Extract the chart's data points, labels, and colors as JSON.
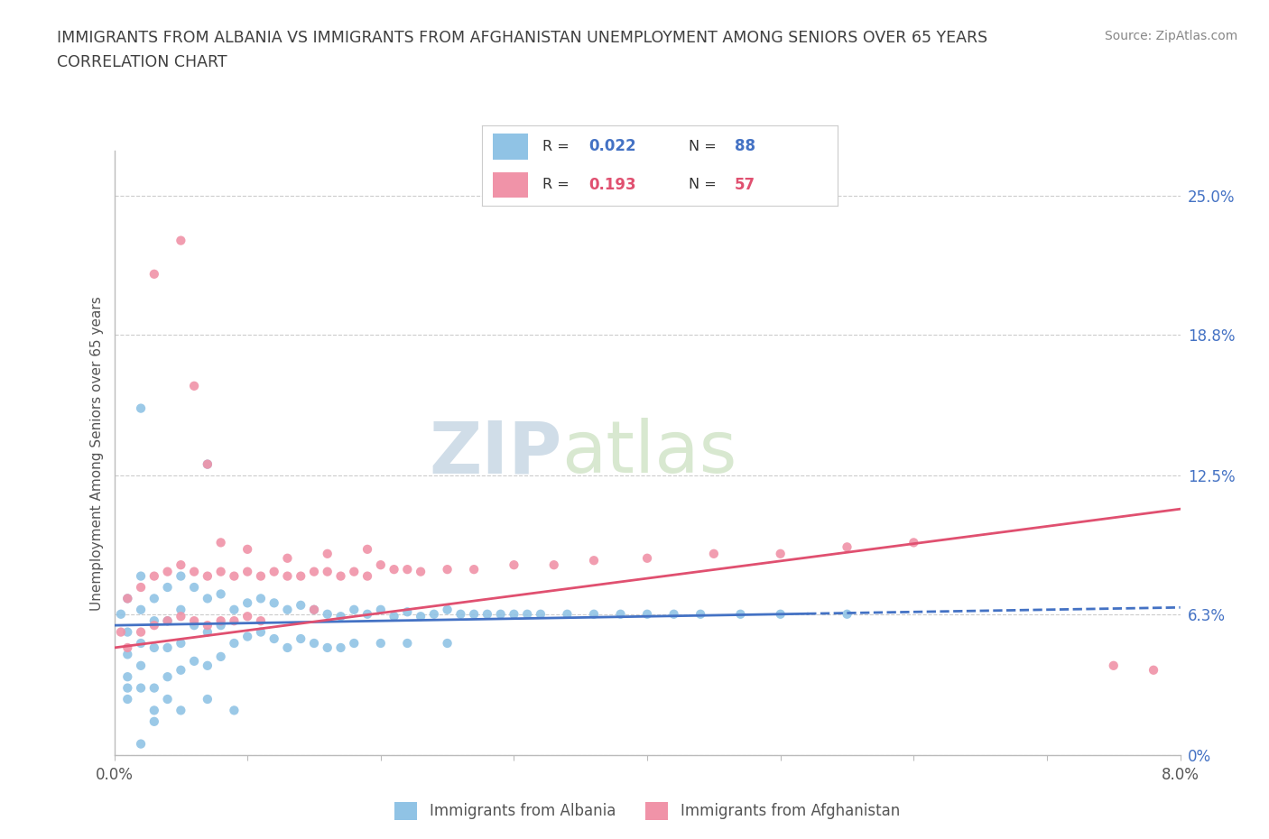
{
  "title_line1": "IMMIGRANTS FROM ALBANIA VS IMMIGRANTS FROM AFGHANISTAN UNEMPLOYMENT AMONG SENIORS OVER 65 YEARS",
  "title_line2": "CORRELATION CHART",
  "source_text": "Source: ZipAtlas.com",
  "ylabel": "Unemployment Among Seniors over 65 years",
  "xlim": [
    0.0,
    0.08
  ],
  "ylim": [
    0.0,
    0.27
  ],
  "yticks": [
    0.0,
    0.063,
    0.125,
    0.188,
    0.25
  ],
  "ytick_labels": [
    "0%",
    "6.3%",
    "12.5%",
    "18.8%",
    "25.0%"
  ],
  "albania_color": "#90C3E5",
  "afghanistan_color": "#F093A8",
  "albania_R": 0.022,
  "albania_N": 88,
  "afghanistan_R": 0.193,
  "afghanistan_N": 57,
  "legend_label_albania": "Immigrants from Albania",
  "legend_label_afghanistan": "Immigrants from Afghanistan",
  "watermark_zip": "ZIP",
  "watermark_atlas": "atlas",
  "background_color": "#ffffff",
  "grid_color": "#cccccc",
  "title_color": "#404040",
  "albania_trend_color": "#4472C4",
  "afghanistan_trend_color": "#E05070",
  "right_label_color": "#4472C4",
  "albania_x": [
    0.0005,
    0.001,
    0.001,
    0.001,
    0.001,
    0.001,
    0.002,
    0.002,
    0.002,
    0.002,
    0.002,
    0.003,
    0.003,
    0.003,
    0.003,
    0.004,
    0.004,
    0.004,
    0.004,
    0.005,
    0.005,
    0.005,
    0.005,
    0.006,
    0.006,
    0.006,
    0.007,
    0.007,
    0.007,
    0.008,
    0.008,
    0.008,
    0.009,
    0.009,
    0.01,
    0.01,
    0.011,
    0.011,
    0.012,
    0.012,
    0.013,
    0.013,
    0.014,
    0.014,
    0.015,
    0.015,
    0.016,
    0.016,
    0.017,
    0.017,
    0.018,
    0.018,
    0.019,
    0.02,
    0.02,
    0.021,
    0.022,
    0.022,
    0.023,
    0.024,
    0.025,
    0.025,
    0.026,
    0.027,
    0.028,
    0.029,
    0.03,
    0.031,
    0.032,
    0.034,
    0.036,
    0.038,
    0.04,
    0.042,
    0.044,
    0.047,
    0.05,
    0.055,
    0.002,
    0.001,
    0.003,
    0.004,
    0.005,
    0.007,
    0.009,
    0.003,
    0.002,
    0.007
  ],
  "albania_y": [
    0.063,
    0.07,
    0.055,
    0.045,
    0.035,
    0.025,
    0.08,
    0.065,
    0.05,
    0.04,
    0.03,
    0.07,
    0.06,
    0.048,
    0.03,
    0.075,
    0.06,
    0.048,
    0.035,
    0.08,
    0.065,
    0.05,
    0.038,
    0.075,
    0.058,
    0.042,
    0.07,
    0.055,
    0.04,
    0.072,
    0.058,
    0.044,
    0.065,
    0.05,
    0.068,
    0.053,
    0.07,
    0.055,
    0.068,
    0.052,
    0.065,
    0.048,
    0.067,
    0.052,
    0.065,
    0.05,
    0.063,
    0.048,
    0.062,
    0.048,
    0.065,
    0.05,
    0.063,
    0.065,
    0.05,
    0.062,
    0.064,
    0.05,
    0.062,
    0.063,
    0.065,
    0.05,
    0.063,
    0.063,
    0.063,
    0.063,
    0.063,
    0.063,
    0.063,
    0.063,
    0.063,
    0.063,
    0.063,
    0.063,
    0.063,
    0.063,
    0.063,
    0.063,
    0.155,
    0.03,
    0.02,
    0.025,
    0.02,
    0.025,
    0.02,
    0.015,
    0.005,
    0.13
  ],
  "afghanistan_x": [
    0.0005,
    0.001,
    0.001,
    0.002,
    0.002,
    0.003,
    0.003,
    0.004,
    0.004,
    0.005,
    0.005,
    0.006,
    0.006,
    0.007,
    0.007,
    0.008,
    0.008,
    0.009,
    0.009,
    0.01,
    0.01,
    0.011,
    0.011,
    0.012,
    0.013,
    0.014,
    0.015,
    0.015,
    0.016,
    0.017,
    0.018,
    0.019,
    0.02,
    0.021,
    0.022,
    0.023,
    0.025,
    0.027,
    0.03,
    0.033,
    0.036,
    0.04,
    0.045,
    0.05,
    0.055,
    0.06,
    0.003,
    0.005,
    0.006,
    0.007,
    0.008,
    0.01,
    0.013,
    0.016,
    0.019,
    0.075,
    0.078
  ],
  "afghanistan_y": [
    0.055,
    0.07,
    0.048,
    0.075,
    0.055,
    0.08,
    0.058,
    0.082,
    0.06,
    0.085,
    0.062,
    0.082,
    0.06,
    0.08,
    0.058,
    0.082,
    0.06,
    0.08,
    0.06,
    0.082,
    0.062,
    0.08,
    0.06,
    0.082,
    0.08,
    0.08,
    0.082,
    0.065,
    0.082,
    0.08,
    0.082,
    0.08,
    0.085,
    0.083,
    0.083,
    0.082,
    0.083,
    0.083,
    0.085,
    0.085,
    0.087,
    0.088,
    0.09,
    0.09,
    0.093,
    0.095,
    0.215,
    0.23,
    0.165,
    0.13,
    0.095,
    0.092,
    0.088,
    0.09,
    0.092,
    0.04,
    0.038
  ]
}
